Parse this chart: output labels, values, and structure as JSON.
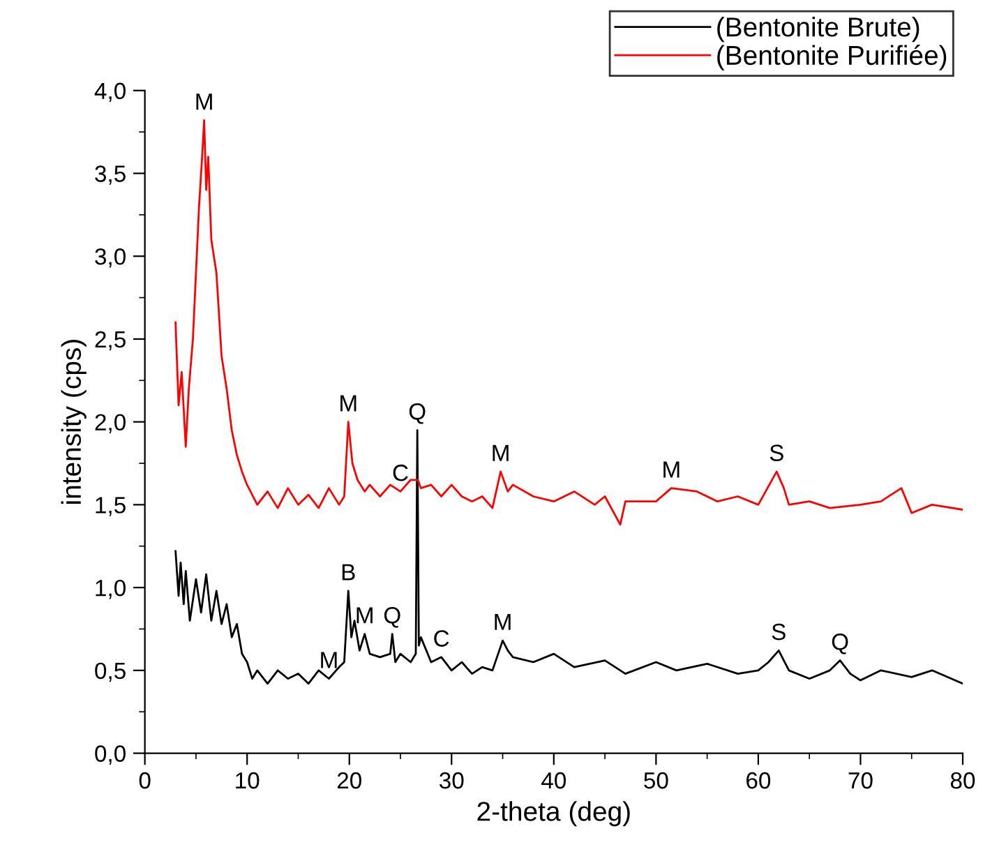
{
  "chart_data": {
    "type": "line",
    "xlabel": "2-theta (deg)",
    "ylabel": "intensity (cps)",
    "xlim": [
      0,
      80
    ],
    "ylim": [
      0,
      4.0
    ],
    "xticks": [
      0,
      10,
      20,
      30,
      40,
      50,
      60,
      70,
      80
    ],
    "yticks": [
      {
        "value": 0,
        "label": "0,0"
      },
      {
        "value": 0.5,
        "label": "0,5"
      },
      {
        "value": 1.0,
        "label": "1,0"
      },
      {
        "value": 1.5,
        "label": "1,5"
      },
      {
        "value": 2.0,
        "label": "2,0"
      },
      {
        "value": 2.5,
        "label": "2,5"
      },
      {
        "value": 3.0,
        "label": "3,0"
      },
      {
        "value": 3.5,
        "label": "3,5"
      },
      {
        "value": 4.0,
        "label": "4,0"
      }
    ],
    "grid": false,
    "legend": "top right",
    "series": [
      {
        "name": "(Bentonite Brute)",
        "color": "#000000",
        "x": [
          3,
          3.3,
          3.5,
          3.8,
          4,
          4.4,
          5,
          5.5,
          6,
          6.5,
          7,
          7.5,
          8,
          8.5,
          9,
          9.5,
          10,
          10.5,
          11,
          12,
          13,
          14,
          15,
          16,
          17,
          18,
          19,
          19.5,
          19.9,
          20.2,
          20.5,
          21,
          21.5,
          22,
          23,
          24,
          24.2,
          24.5,
          25,
          26,
          26.5,
          26.65,
          26.8,
          27,
          28,
          29,
          30,
          31,
          32,
          33,
          34,
          35,
          35.5,
          36,
          38,
          40,
          42,
          45,
          47,
          50,
          52,
          55,
          58,
          60,
          61,
          62,
          63,
          65,
          67,
          68,
          69,
          70,
          72,
          75,
          77,
          80
        ],
        "values": [
          1.22,
          0.95,
          1.15,
          0.9,
          1.1,
          0.8,
          1.05,
          0.85,
          1.08,
          0.8,
          0.98,
          0.78,
          0.9,
          0.7,
          0.78,
          0.6,
          0.55,
          0.45,
          0.5,
          0.42,
          0.5,
          0.45,
          0.48,
          0.42,
          0.5,
          0.45,
          0.52,
          0.55,
          0.98,
          0.7,
          0.8,
          0.62,
          0.72,
          0.6,
          0.58,
          0.6,
          0.72,
          0.55,
          0.6,
          0.55,
          0.6,
          1.95,
          0.65,
          0.7,
          0.55,
          0.58,
          0.5,
          0.55,
          0.48,
          0.52,
          0.5,
          0.68,
          0.62,
          0.58,
          0.55,
          0.6,
          0.52,
          0.56,
          0.48,
          0.55,
          0.5,
          0.54,
          0.48,
          0.5,
          0.55,
          0.62,
          0.5,
          0.45,
          0.5,
          0.56,
          0.48,
          0.44,
          0.5,
          0.46,
          0.5,
          0.42
        ]
      },
      {
        "name": "(Bentonite Purifiée)",
        "color": "#ff0000",
        "x": [
          3,
          3.3,
          3.6,
          4,
          4.3,
          4.7,
          5,
          5.3,
          5.6,
          5.8,
          6,
          6.2,
          6.5,
          7,
          7.5,
          8,
          8.5,
          9,
          9.5,
          10,
          11,
          12,
          13,
          14,
          15,
          16,
          17,
          18,
          19,
          19.5,
          19.9,
          20.3,
          20.8,
          21.5,
          22,
          23,
          24,
          25,
          26,
          26.7,
          27,
          28,
          29,
          30,
          31,
          32,
          33,
          34,
          34.8,
          35.5,
          36,
          38,
          40,
          42,
          44,
          45,
          46.5,
          47,
          50,
          51.5,
          54,
          56,
          58,
          60,
          61.8,
          62.5,
          63,
          65,
          67,
          70,
          72,
          74,
          75,
          77,
          80
        ],
        "values": [
          2.6,
          2.1,
          2.3,
          1.85,
          2.2,
          2.5,
          2.9,
          3.3,
          3.6,
          3.82,
          3.4,
          3.6,
          3.1,
          2.9,
          2.4,
          2.2,
          1.95,
          1.8,
          1.7,
          1.62,
          1.5,
          1.58,
          1.48,
          1.6,
          1.5,
          1.56,
          1.48,
          1.6,
          1.5,
          1.55,
          2.0,
          1.75,
          1.65,
          1.58,
          1.62,
          1.55,
          1.62,
          1.58,
          1.65,
          1.65,
          1.6,
          1.62,
          1.55,
          1.62,
          1.55,
          1.52,
          1.55,
          1.48,
          1.7,
          1.58,
          1.62,
          1.55,
          1.52,
          1.58,
          1.5,
          1.55,
          1.38,
          1.52,
          1.52,
          1.6,
          1.58,
          1.52,
          1.55,
          1.5,
          1.7,
          1.6,
          1.5,
          1.52,
          1.48,
          1.5,
          1.52,
          1.6,
          1.45,
          1.5,
          1.47
        ]
      }
    ],
    "annotations": [
      {
        "text": "M",
        "x": 5.8,
        "y": 3.82
      },
      {
        "text": "M",
        "x": 19.9,
        "y": 2.0
      },
      {
        "text": "Q",
        "x": 26.65,
        "y": 1.95
      },
      {
        "text": "C",
        "x": 25,
        "y": 1.58
      },
      {
        "text": "M",
        "x": 34.8,
        "y": 1.7
      },
      {
        "text": "M",
        "x": 51.5,
        "y": 1.6
      },
      {
        "text": "S",
        "x": 61.8,
        "y": 1.7
      },
      {
        "text": "B",
        "x": 19.9,
        "y": 0.98
      },
      {
        "text": "M",
        "x": 18,
        "y": 0.45
      },
      {
        "text": "M",
        "x": 21.5,
        "y": 0.72
      },
      {
        "text": "Q",
        "x": 24.2,
        "y": 0.72
      },
      {
        "text": "C",
        "x": 29,
        "y": 0.58
      },
      {
        "text": "M",
        "x": 35,
        "y": 0.68
      },
      {
        "text": "S",
        "x": 62,
        "y": 0.62
      },
      {
        "text": "Q",
        "x": 68,
        "y": 0.56
      }
    ]
  }
}
